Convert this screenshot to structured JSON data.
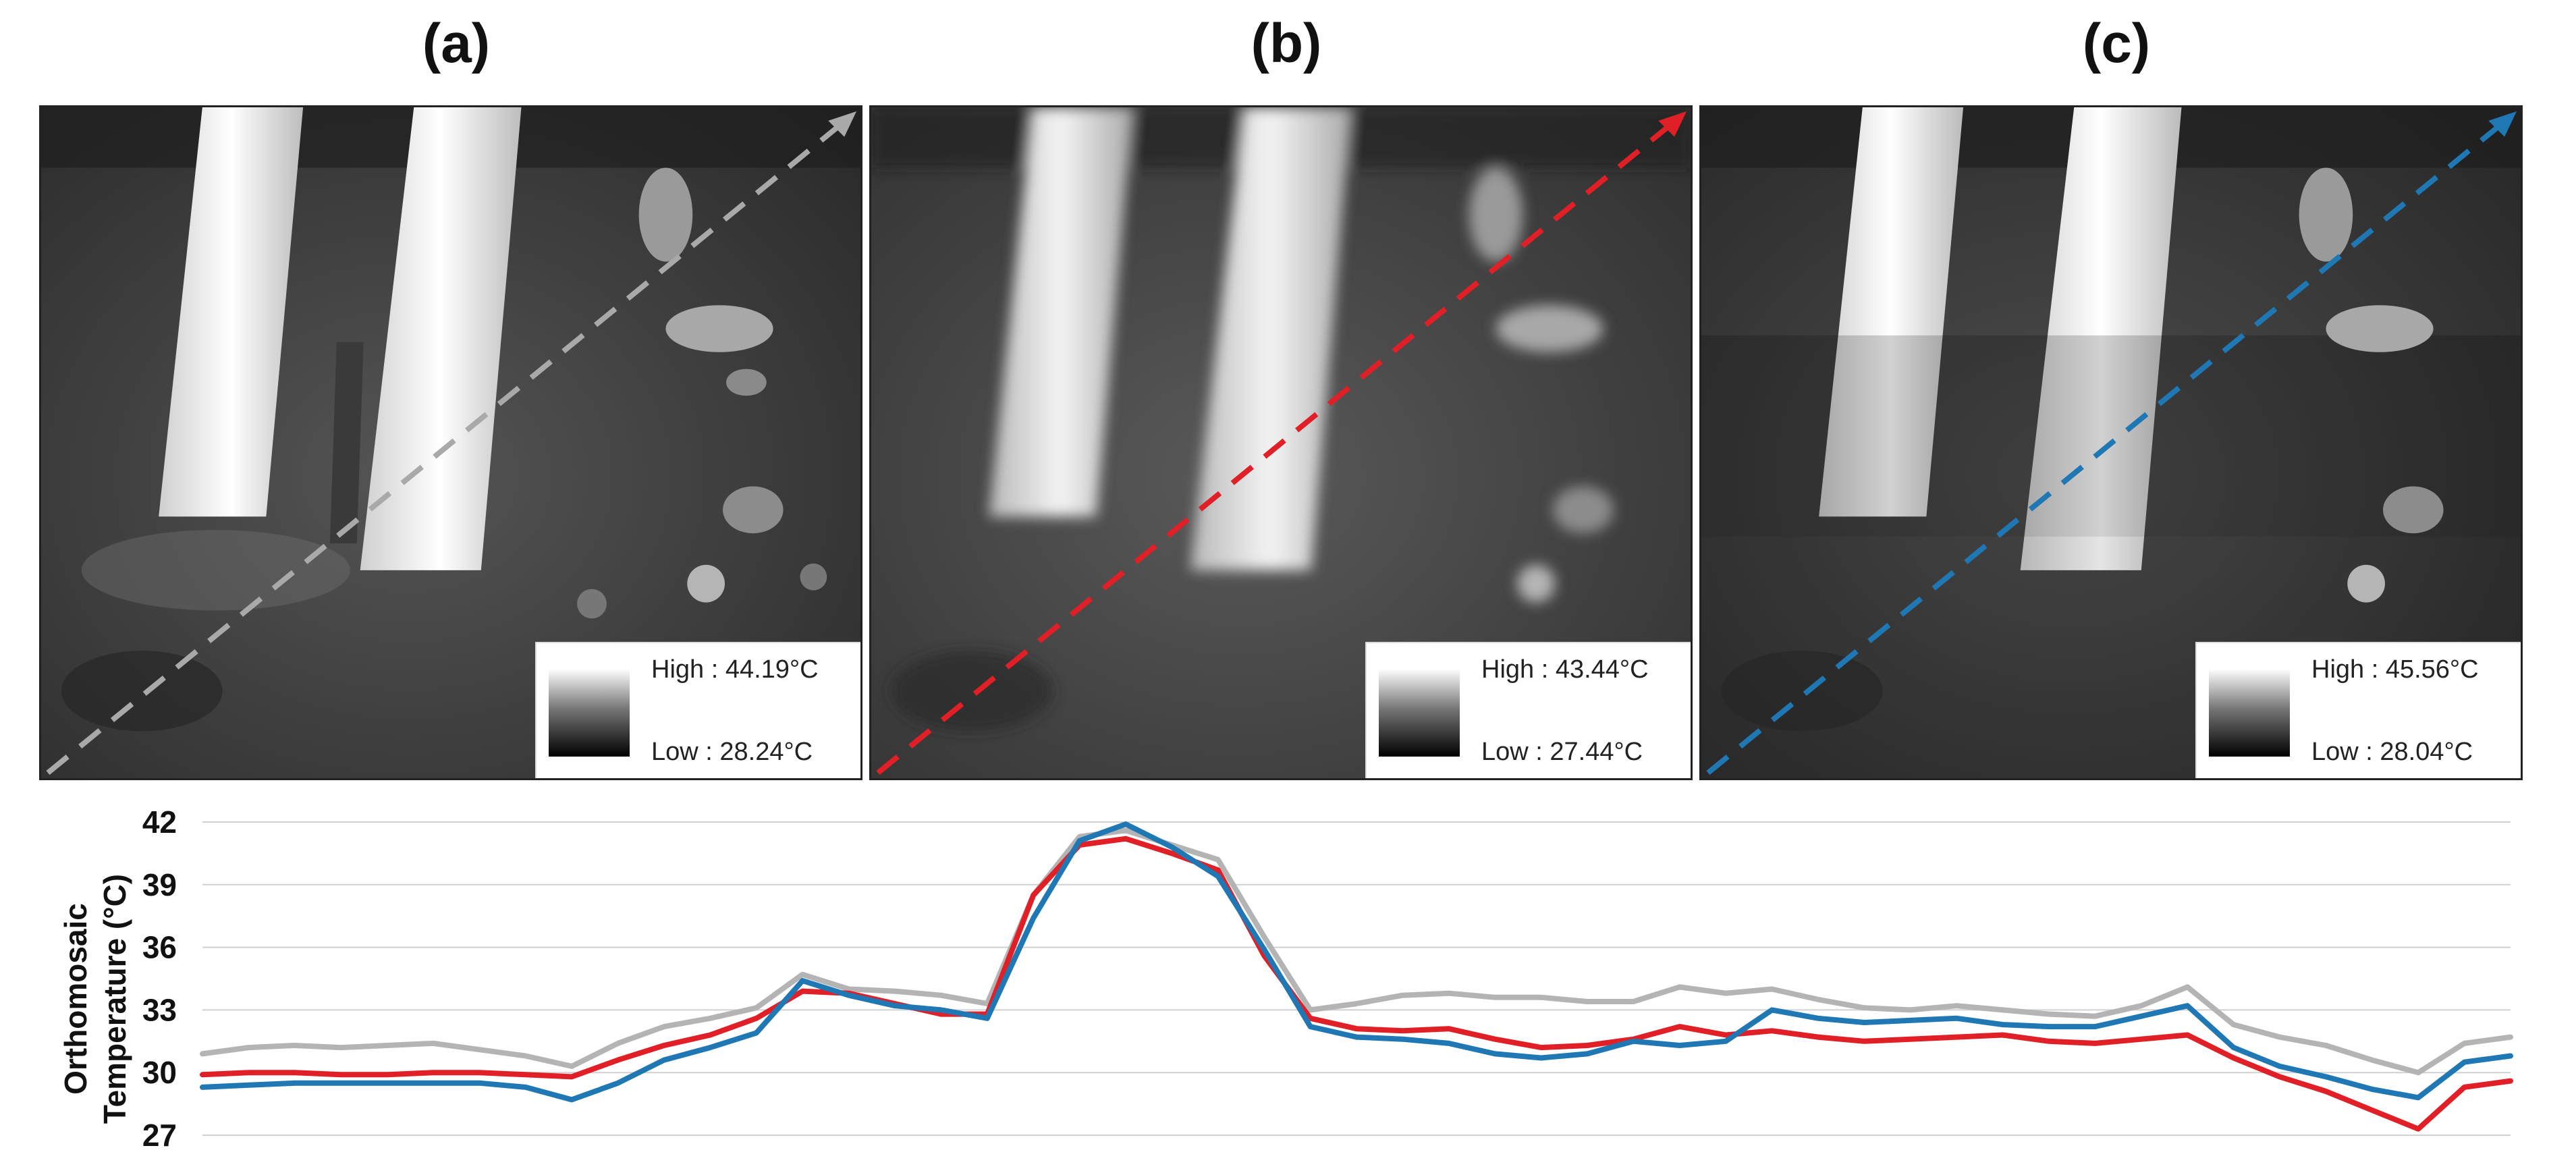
{
  "panels": [
    {
      "label": "(a)",
      "legend_high": "High : 44.19°C",
      "legend_low": "Low : 28.24°C",
      "arrow_color": "#a9a9a9"
    },
    {
      "label": "(b)",
      "legend_high": "High : 43.44°C",
      "legend_low": "Low : 27.44°C",
      "arrow_color": "#e01f26"
    },
    {
      "label": "(c)",
      "legend_high": "High : 45.56°C",
      "legend_low": "Low : 28.04°C",
      "arrow_color": "#1f78b4"
    }
  ],
  "chart_data": {
    "type": "line",
    "title": "",
    "xlabel": "",
    "ylabel": "Orthomosaic Temperature (°C)",
    "ylabel_lines": [
      "Orthomosaic",
      "Temperature (°C)"
    ],
    "ylim": [
      27,
      42
    ],
    "yticks": [
      27,
      30,
      33,
      36,
      39,
      42
    ],
    "grid": true,
    "x": [
      0,
      2,
      4,
      6,
      8,
      10,
      12,
      14,
      16,
      18,
      20,
      22,
      24,
      26,
      28,
      30,
      32,
      34,
      36,
      38,
      40,
      42,
      44,
      46,
      48,
      50,
      52,
      54,
      56,
      58,
      60,
      62,
      64,
      66,
      68,
      70,
      72,
      74,
      76,
      78,
      80,
      82,
      84,
      86,
      88,
      90,
      92,
      94,
      96,
      98,
      100
    ],
    "series": [
      {
        "name": "(a)",
        "color": "#b4b4b4",
        "values": [
          30.9,
          31.2,
          31.3,
          31.2,
          31.3,
          31.4,
          31.1,
          30.8,
          30.3,
          31.4,
          32.2,
          32.6,
          33.1,
          34.7,
          34.0,
          33.9,
          33.7,
          33.3,
          38.5,
          41.3,
          41.6,
          40.9,
          40.2,
          36.5,
          33.0,
          33.3,
          33.7,
          33.8,
          33.6,
          33.6,
          33.4,
          33.4,
          34.1,
          33.8,
          34.0,
          33.5,
          33.1,
          33.0,
          33.2,
          33.0,
          32.8,
          32.7,
          33.2,
          34.1,
          32.3,
          31.7,
          31.3,
          30.6,
          30.0,
          31.4,
          31.7
        ]
      },
      {
        "name": "(b)",
        "color": "#e01f26",
        "values": [
          29.9,
          30.0,
          30.0,
          29.9,
          29.9,
          30.0,
          30.0,
          29.9,
          29.8,
          30.6,
          31.3,
          31.8,
          32.6,
          33.9,
          33.8,
          33.3,
          32.8,
          32.8,
          38.5,
          40.9,
          41.2,
          40.5,
          39.7,
          35.6,
          32.6,
          32.1,
          32.0,
          32.1,
          31.6,
          31.2,
          31.3,
          31.6,
          32.2,
          31.8,
          32.0,
          31.7,
          31.5,
          31.6,
          31.7,
          31.8,
          31.5,
          31.4,
          31.6,
          31.8,
          30.7,
          29.8,
          29.1,
          28.2,
          27.3,
          29.3,
          29.6
        ]
      },
      {
        "name": "(c)",
        "color": "#1f78b4",
        "values": [
          29.3,
          29.4,
          29.5,
          29.5,
          29.5,
          29.5,
          29.5,
          29.3,
          28.7,
          29.5,
          30.6,
          31.2,
          31.9,
          34.4,
          33.7,
          33.2,
          33.0,
          32.6,
          37.4,
          41.1,
          41.9,
          40.8,
          39.4,
          35.9,
          32.2,
          31.7,
          31.6,
          31.4,
          30.9,
          30.7,
          30.9,
          31.5,
          31.3,
          31.5,
          33.0,
          32.6,
          32.4,
          32.5,
          32.6,
          32.3,
          32.2,
          32.2,
          32.7,
          33.2,
          31.2,
          30.3,
          29.8,
          29.2,
          28.8,
          30.5,
          30.8
        ]
      }
    ]
  }
}
